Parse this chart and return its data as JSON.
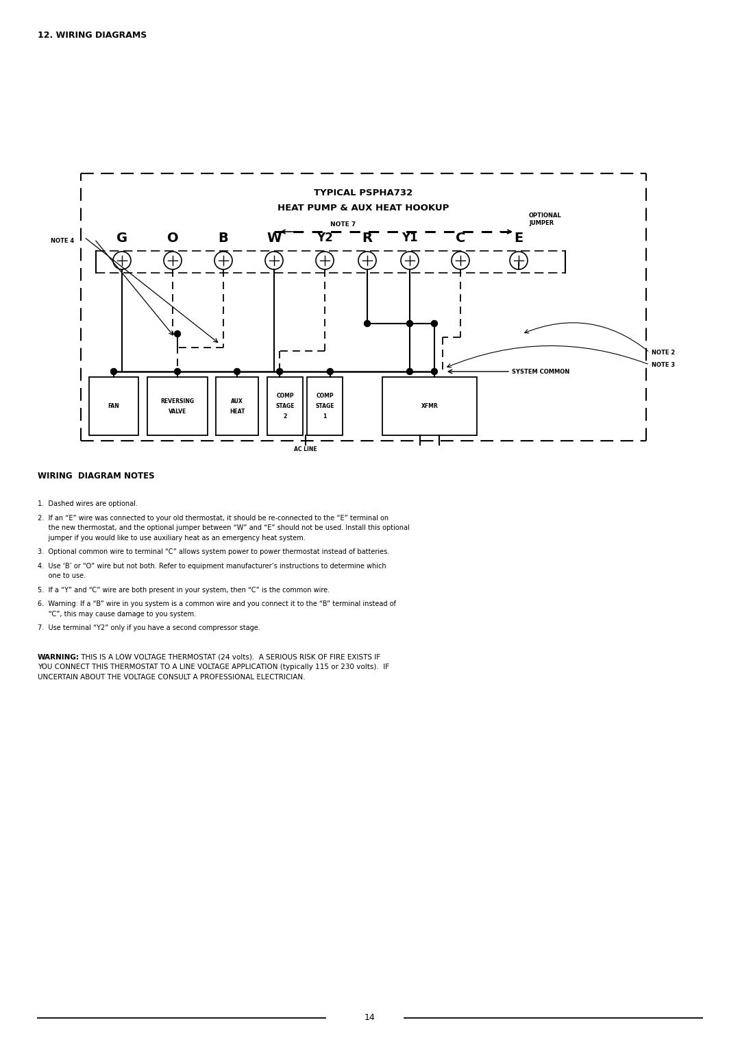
{
  "title_section": "12. WIRING DIAGRAMS",
  "diagram_title_line1": "TYPICAL PSPHA732",
  "diagram_title_line2": "HEAT PUMP & AUX HEAT HOOKUP",
  "terminals": [
    "G",
    "O",
    "B",
    "W",
    "Y2",
    "R",
    "Y1",
    "C",
    "E"
  ],
  "note7_label": "NOTE 7",
  "note4_label": "NOTE 4",
  "note2_label": "NOTE 2",
  "note3_label": "NOTE 3",
  "optional_jumper_label": "OPTIONAL\nJUMPER",
  "system_common_label": "SYSTEM COMMON",
  "ac_line_label": "AC LINE",
  "box_labels": [
    "FAN",
    "REVERSING\nVALVE",
    "AUX\nHEAT",
    "COMP\nSTAGE\n2",
    "COMP\nSTAGE\n1",
    "XFMR"
  ],
  "wiring_notes_title": "WIRING  DIAGRAM NOTES",
  "notes": [
    "1.  Dashed wires are optional.",
    "2.  If an “E” wire was connected to your old thermostat, it should be re-connected to the “E” terminal on\n     the new thermostat, and the optional jumper between “W” and “E” should not be used. Install this optional\n     jumper if you would like to use auxiliary heat as an emergency heat system.",
    "3.  Optional common wire to terminal “C” allows system power to power thermostat instead of batteries.",
    "4.  Use ‘B’ or “O” wire but not both. Refer to equipment manufacturer’s instructions to determine which\n     one to use.",
    "5.  If a “Y” and “C” wire are both present in your system, then “C” is the common wire.",
    "6.  Warning: If a “B” wire in you system is a common wire and you connect it to the “B” terminal instead of\n     “C”, this may cause damage to you system.",
    "7.  Use terminal “Y2” only if you have a second compressor stage."
  ],
  "warning_label": "WARNING:",
  "warning_text": " THIS IS A LOW VOLTAGE THERMOSTAT (24 volts).  A SERIOUS RISK OF FIRE EXISTS IF\nYOU CONNECT THIS THERMOSTAT TO A LINE VOLTAGE APPLICATION (typically 115 or 230 volts).  IF\nUNCERTAIN ABOUT THE VOLTAGE CONSULT A PROFESSIONAL ELECTRICIAN.",
  "page_number": "14",
  "bg_color": "#ffffff"
}
